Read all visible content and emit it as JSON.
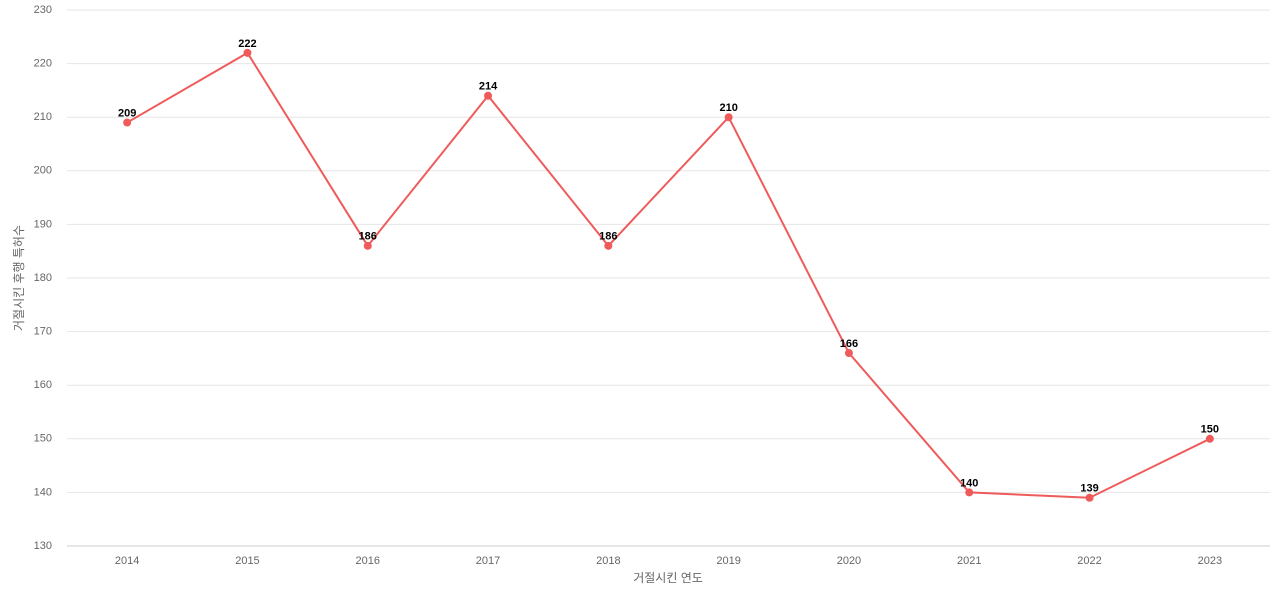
{
  "chart_data": {
    "type": "line",
    "x_label": "거절시킨 연도",
    "y_label": "거절시킨 후행 특허수",
    "categories": [
      "2014",
      "2015",
      "2016",
      "2017",
      "2018",
      "2019",
      "2020",
      "2021",
      "2022",
      "2023"
    ],
    "values": [
      209,
      222,
      186,
      214,
      186,
      210,
      166,
      140,
      139,
      150
    ],
    "color": "#ef5b5b",
    "ylim": [
      130,
      230
    ],
    "yticks": [
      130,
      140,
      150,
      160,
      170,
      180,
      190,
      200,
      210,
      220,
      230
    ],
    "grid": true
  }
}
